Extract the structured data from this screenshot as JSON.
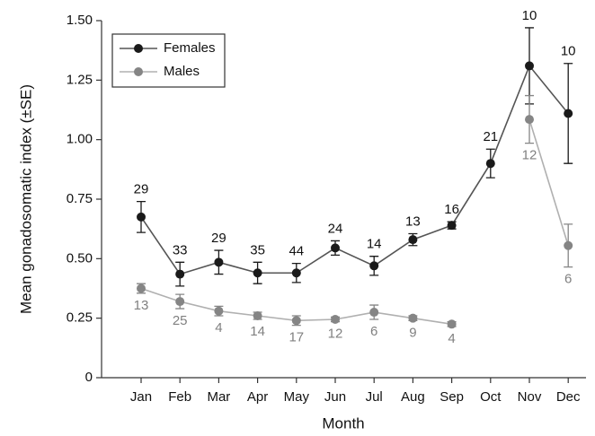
{
  "chart_data": {
    "type": "line",
    "y_label": "Mean gonadosomatic index (±SE)",
    "x_label": "Month",
    "categories": [
      "Jan",
      "Feb",
      "Mar",
      "Apr",
      "May",
      "Jun",
      "Jul",
      "Aug",
      "Sep",
      "Oct",
      "Nov",
      "Dec"
    ],
    "series": [
      {
        "name": "Females",
        "color": "#1a1a1a",
        "line_color": "#555555",
        "label_color": "#111111",
        "values": [
          0.675,
          0.435,
          0.485,
          0.44,
          0.44,
          0.545,
          0.47,
          0.58,
          0.64,
          0.9,
          1.31,
          1.11
        ],
        "errors": [
          0.065,
          0.05,
          0.05,
          0.045,
          0.04,
          0.03,
          0.04,
          0.025,
          0.015,
          0.06,
          0.16,
          0.21
        ],
        "sample_sizes": [
          29,
          33,
          29,
          35,
          44,
          24,
          14,
          13,
          16,
          21,
          10,
          10
        ]
      },
      {
        "name": "Males",
        "color": "#858585",
        "line_color": "#b0b0b0",
        "label_color": "#808080",
        "values": [
          0.375,
          0.32,
          0.28,
          0.26,
          0.24,
          0.245,
          0.275,
          0.25,
          0.225,
          null,
          1.085,
          0.555
        ],
        "errors": [
          0.02,
          0.03,
          0.02,
          0.015,
          0.02,
          0.01,
          0.03,
          0.01,
          0.01,
          null,
          0.1,
          0.09
        ],
        "sample_sizes": [
          13,
          25,
          4,
          14,
          17,
          12,
          6,
          9,
          4,
          null,
          12,
          6
        ]
      }
    ],
    "ylim": [
      0,
      1.5
    ],
    "yticks": [
      0,
      0.25,
      {
        "value": 0.5,
        "label": "0.50"
      },
      0.75,
      {
        "value": 1,
        "label": "1.00"
      },
      1.25,
      {
        "value": 1.5,
        "label": "1.50"
      }
    ],
    "legend": "top-left"
  }
}
